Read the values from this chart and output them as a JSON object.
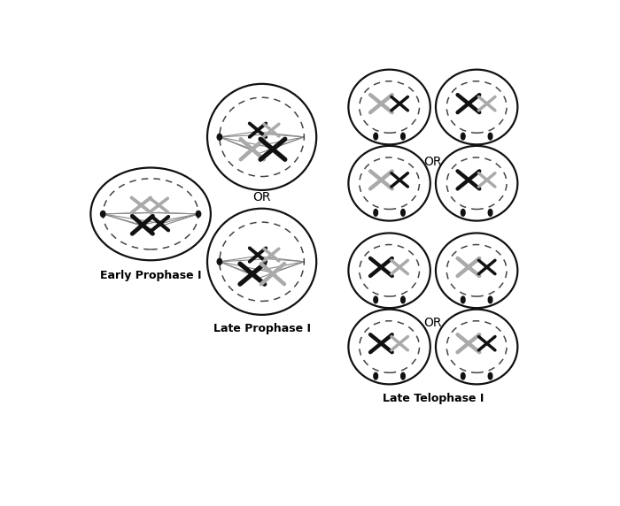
{
  "bg_color": "#ffffff",
  "text_color": "#000000",
  "dark_chr": "#111111",
  "gray_chr": "#aaaaaa",
  "cell_edge": "#111111",
  "dashed_color": "#444444",
  "spindle_color": "#888888",
  "labels": {
    "early_prophase": "Early Prophase I",
    "late_prophase": "Late Prophase I",
    "late_telophase": "Late Telophase I",
    "or": "OR"
  },
  "figw": 7.0,
  "figh": 5.72,
  "dpi": 100
}
